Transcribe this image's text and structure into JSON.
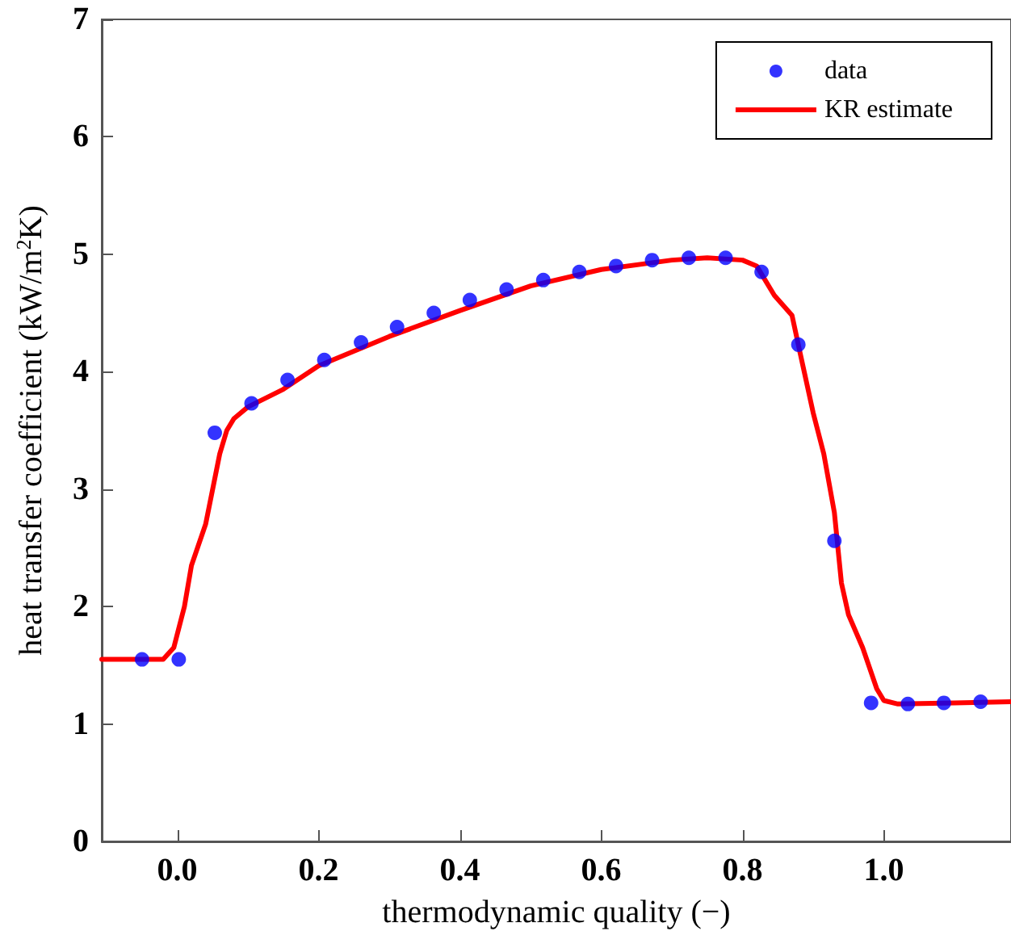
{
  "chart_data": {
    "type": "scatter",
    "xlabel": "thermodynamic quality (−)",
    "ylabel": "heat transfer coefficient (kW/m$^{2}$K)",
    "xlim": [
      -0.107,
      1.18
    ],
    "xticks": [
      {
        "value": 0,
        "label": "0.0"
      },
      0.2,
      0.4,
      0.6,
      0.8,
      {
        "value": 1,
        "label": "1.0"
      }
    ],
    "ylim": [
      0,
      7
    ],
    "yticks": [
      0,
      1,
      2,
      3,
      4,
      5,
      6,
      7
    ],
    "grid": false,
    "legend": "top right",
    "series": [
      {
        "name": "data",
        "color": "#0000ff",
        "marker": "circle",
        "x": [
          -0.05,
          0.002,
          0.053,
          0.105,
          0.156,
          0.208,
          0.26,
          0.311,
          0.363,
          0.414,
          0.466,
          0.518,
          0.569,
          0.621,
          0.672,
          0.724,
          0.776,
          0.827,
          0.879,
          0.93,
          0.982,
          1.034,
          1.085,
          1.137
        ],
        "values": [
          1.55,
          1.55,
          3.48,
          3.73,
          3.93,
          4.1,
          4.25,
          4.38,
          4.5,
          4.61,
          4.7,
          4.78,
          4.85,
          4.9,
          4.95,
          4.97,
          4.97,
          4.85,
          4.23,
          2.56,
          1.18,
          1.17,
          1.18,
          1.19
        ]
      },
      {
        "name": "KR estimate",
        "type": "line",
        "color": "#ff0000",
        "line_style": "solid",
        "x": [
          -0.107,
          -0.02,
          -0.005,
          0.01,
          0.02,
          0.04,
          0.06,
          0.07,
          0.08,
          0.1,
          0.15,
          0.2,
          0.3,
          0.4,
          0.5,
          0.6,
          0.7,
          0.75,
          0.8,
          0.82,
          0.845,
          0.87,
          0.88,
          0.9,
          0.915,
          0.93,
          0.94,
          0.95,
          0.97,
          0.99,
          1.0,
          1.02,
          1.1,
          1.18
        ],
        "values": [
          1.55,
          1.55,
          1.65,
          2.0,
          2.35,
          2.7,
          3.3,
          3.5,
          3.6,
          3.7,
          3.85,
          4.05,
          4.3,
          4.52,
          4.73,
          4.87,
          4.95,
          4.97,
          4.95,
          4.9,
          4.65,
          4.48,
          4.2,
          3.65,
          3.3,
          2.8,
          2.2,
          1.93,
          1.65,
          1.3,
          1.2,
          1.17,
          1.18,
          1.19
        ]
      }
    ]
  }
}
